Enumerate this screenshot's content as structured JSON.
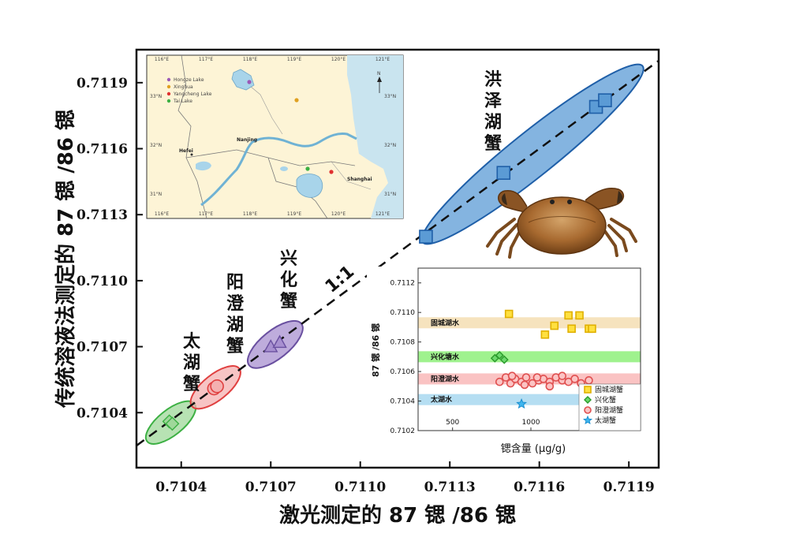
{
  "chart_data": [
    {
      "type": "scatter",
      "xlabel": "激光测定的 87 锶 /86 锶",
      "ylabel": "传统溶液法测定的 87 锶 /86 锶",
      "xlim": [
        0.71025,
        0.712
      ],
      "ylim": [
        0.71015,
        0.71205
      ],
      "x_ticks": [
        "0.7104",
        "0.7107",
        "0.7110",
        "0.7113",
        "0.7116",
        "0.7119"
      ],
      "y_ticks": [
        "0.7104",
        "0.7107",
        "0.7110",
        "0.7113",
        "0.7116",
        "0.7119"
      ],
      "x_tick_values": [
        0.7104,
        0.7107,
        0.711,
        0.7113,
        0.7116,
        0.7119
      ],
      "y_tick_values": [
        0.7104,
        0.7107,
        0.711,
        0.7113,
        0.7116,
        0.7119
      ],
      "reference_line_label": "1:1",
      "series": [
        {
          "name": "太湖蟹",
          "label": "太\n湖\n蟹",
          "marker": "diamond",
          "color": "#3cb043",
          "fill": "#9fd89a",
          "x": [
            0.71036,
            0.71037
          ],
          "y": [
            0.71036,
            0.71035
          ]
        },
        {
          "name": "阳澄湖蟹",
          "label": "阳\n澄\n湖\n蟹",
          "marker": "circle",
          "color": "#e04040",
          "fill": "#f4b0b0",
          "x": [
            0.71051,
            0.71052
          ],
          "y": [
            0.71051,
            0.71052
          ]
        },
        {
          "name": "兴化蟹",
          "label": "兴\n化\n蟹",
          "marker": "triangle",
          "color": "#6a50a0",
          "fill": "#a890d0",
          "x": [
            0.7107,
            0.71073
          ],
          "y": [
            0.7107,
            0.71072
          ]
        },
        {
          "name": "洪泽湖蟹",
          "label": "洪\n泽\n湖\n蟹",
          "marker": "square",
          "color": "#1f5fa8",
          "fill": "#5b9bd5",
          "x": [
            0.71122,
            0.71148,
            0.71179,
            0.71182
          ],
          "y": [
            0.7112,
            0.71149,
            0.71179,
            0.71182
          ]
        }
      ]
    },
    {
      "type": "scatter",
      "xlabel": "锶含量 (μg/g)",
      "ylabel": "87 锶 /86 锶",
      "x_ticks": [
        "500",
        "1000"
      ],
      "y_ticks": [
        "0.7102",
        "0.7104",
        "0.7106",
        "0.7108",
        "0.7110",
        "0.7112"
      ],
      "bands": [
        {
          "label": "固城湖水",
          "y_center": 0.71093,
          "color": "#f5deb3"
        },
        {
          "label": "兴化塘水",
          "y_center": 0.7107,
          "color": "#8ef07a"
        },
        {
          "label": "阳澄湖水",
          "y_center": 0.71055,
          "color": "#f9b8b8"
        },
        {
          "label": "太湖水",
          "y_center": 0.71041,
          "color": "#a8d8f0"
        }
      ],
      "series": [
        {
          "name": "固城湖蟹",
          "marker": "square",
          "color": "#e0b000",
          "fill": "#ffe040",
          "x": [
            860,
            1090,
            1150,
            1240,
            1310,
            1370,
            1260,
            1390
          ],
          "y": [
            0.71099,
            0.71085,
            0.71091,
            0.71098,
            0.71098,
            0.71089,
            0.71089,
            0.71089
          ]
        },
        {
          "name": "兴化蟹",
          "marker": "diamond",
          "color": "#2a9a2a",
          "fill": "#6cd86c",
          "x": [
            770,
            800,
            830
          ],
          "y": [
            0.71069,
            0.71071,
            0.71068
          ]
        },
        {
          "name": "阳澄湖蟹",
          "marker": "circle",
          "color": "#e05050",
          "fill": "#fbc4c4",
          "x": [
            800,
            840,
            870,
            900,
            940,
            970,
            1010,
            1050,
            1080,
            1120,
            1160,
            1200,
            1240,
            1280,
            1320,
            1370,
            880,
            960,
            1040,
            1120,
            1200
          ],
          "y": [
            0.71053,
            0.71056,
            0.71052,
            0.71055,
            0.71053,
            0.71056,
            0.71052,
            0.71054,
            0.71055,
            0.71053,
            0.71056,
            0.71054,
            0.71053,
            0.71055,
            0.71052,
            0.71054,
            0.71057,
            0.71051,
            0.71056,
            0.7105,
            0.71057
          ]
        },
        {
          "name": "太湖蟹",
          "marker": "star",
          "color": "#1a8fd0",
          "fill": "#3fb6ef",
          "x": [
            940
          ],
          "y": [
            0.71038
          ]
        }
      ]
    }
  ],
  "map": {
    "lon_labels": [
      "116°E",
      "117°E",
      "118°E",
      "119°E",
      "120°E",
      "121°E"
    ],
    "lat_labels": [
      "33°N",
      "32°N",
      "31°N"
    ],
    "legend": [
      {
        "label": "Hongze Lake",
        "color": "#9b59b6"
      },
      {
        "label": "Xinghua",
        "color": "#e0a020"
      },
      {
        "label": "Yangcheng Lake",
        "color": "#e03030"
      },
      {
        "label": "Tai Lake",
        "color": "#3cb043"
      }
    ],
    "cities": [
      "Hefei",
      "Nanjing",
      "Shanghai"
    ],
    "north": "N"
  },
  "photo": {
    "subject": "chinese-mitten-crab"
  }
}
